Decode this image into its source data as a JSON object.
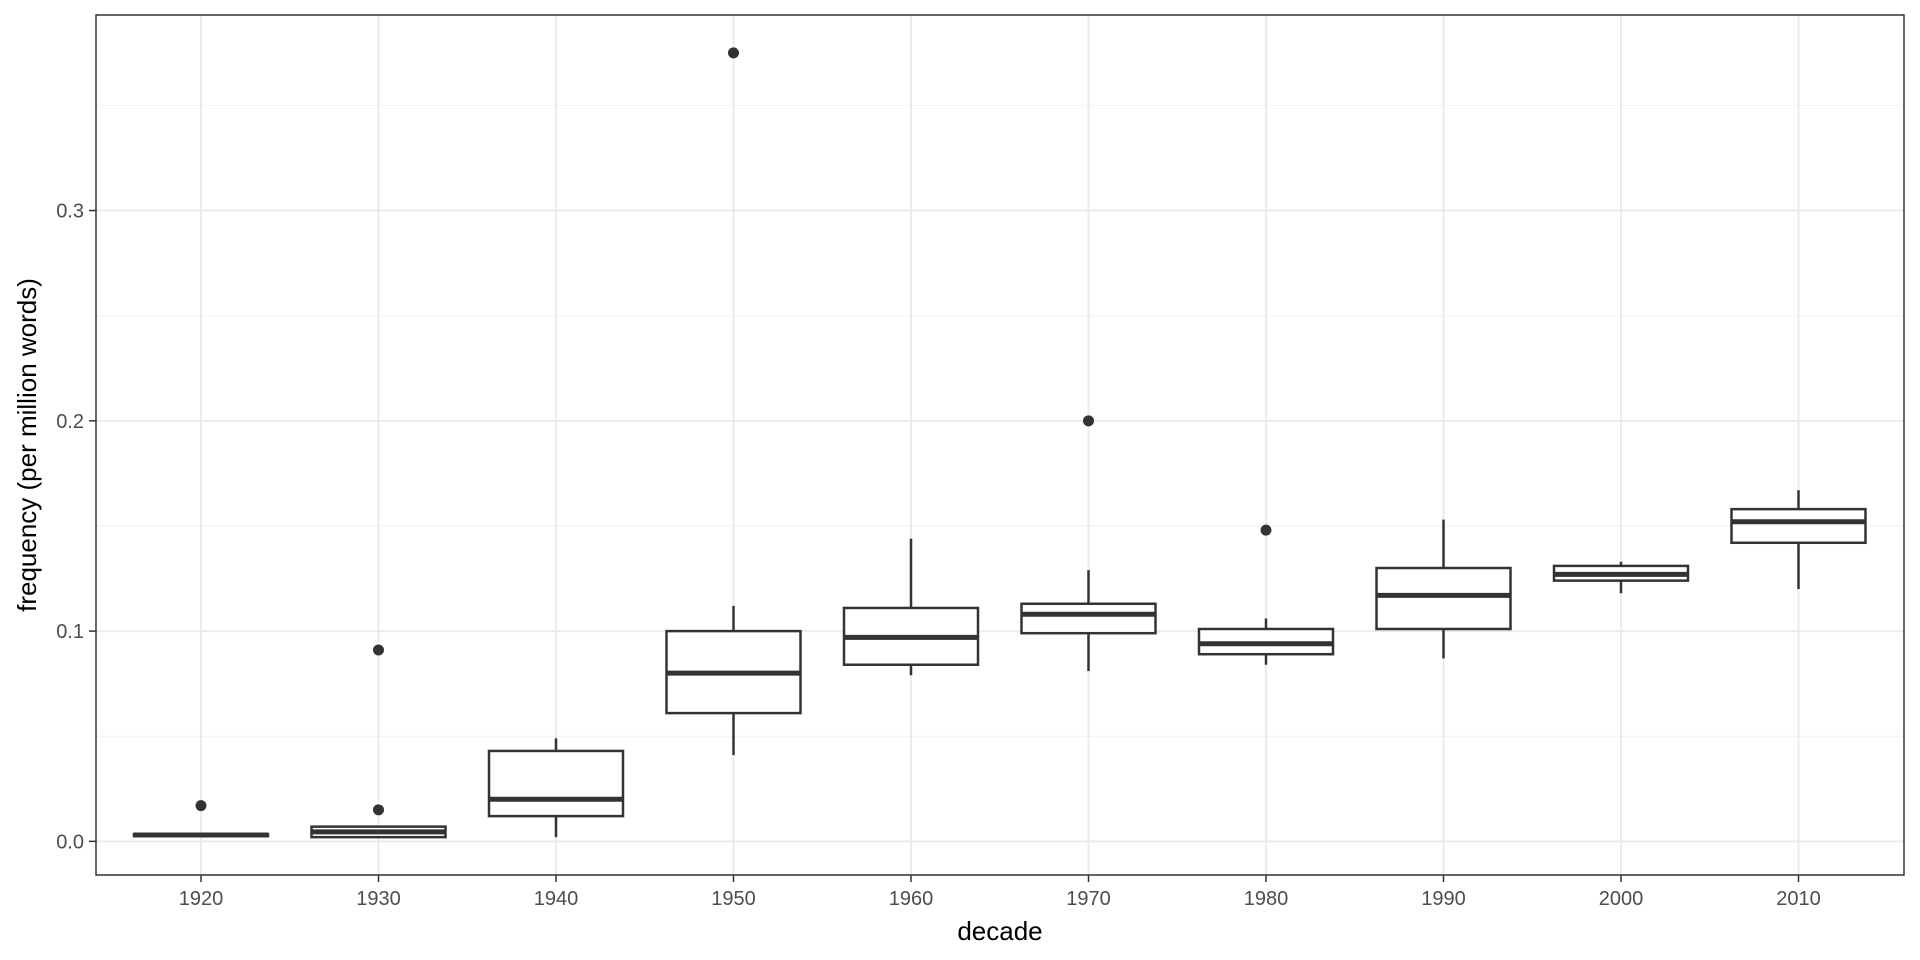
{
  "chart_data": {
    "type": "boxplot",
    "xlabel": "decade",
    "ylabel": "frequency (per million words)",
    "ylim": [
      -0.016,
      0.393
    ],
    "y_ticks": [
      0.0,
      0.1,
      0.2,
      0.3
    ],
    "y_tick_labels": [
      "0.0",
      "0.1",
      "0.2",
      "0.3"
    ],
    "y_minor_ticks": [
      0.05,
      0.15,
      0.25,
      0.35
    ],
    "grid": true,
    "categories": [
      "1920",
      "1930",
      "1940",
      "1950",
      "1960",
      "1970",
      "1980",
      "1990",
      "2000",
      "2010"
    ],
    "boxes": [
      {
        "category": "1920",
        "whisker_low": 0.002,
        "q1": 0.0025,
        "median": 0.003,
        "q3": 0.0035,
        "whisker_high": 0.004,
        "outliers": [
          0.017
        ]
      },
      {
        "category": "1930",
        "whisker_low": 0.0015,
        "q1": 0.002,
        "median": 0.0045,
        "q3": 0.007,
        "whisker_high": 0.007,
        "outliers": [
          0.091,
          0.015
        ]
      },
      {
        "category": "1940",
        "whisker_low": 0.002,
        "q1": 0.012,
        "median": 0.02,
        "q3": 0.043,
        "whisker_high": 0.049,
        "outliers": []
      },
      {
        "category": "1950",
        "whisker_low": 0.041,
        "q1": 0.061,
        "median": 0.08,
        "q3": 0.1,
        "whisker_high": 0.112,
        "outliers": [
          0.375
        ]
      },
      {
        "category": "1960",
        "whisker_low": 0.079,
        "q1": 0.084,
        "median": 0.097,
        "q3": 0.111,
        "whisker_high": 0.144,
        "outliers": []
      },
      {
        "category": "1970",
        "whisker_low": 0.081,
        "q1": 0.099,
        "median": 0.108,
        "q3": 0.113,
        "whisker_high": 0.129,
        "outliers": [
          0.2
        ]
      },
      {
        "category": "1980",
        "whisker_low": 0.084,
        "q1": 0.089,
        "median": 0.094,
        "q3": 0.101,
        "whisker_high": 0.106,
        "outliers": [
          0.148
        ]
      },
      {
        "category": "1990",
        "whisker_low": 0.087,
        "q1": 0.101,
        "median": 0.117,
        "q3": 0.13,
        "whisker_high": 0.153,
        "outliers": []
      },
      {
        "category": "2000",
        "whisker_low": 0.118,
        "q1": 0.124,
        "median": 0.127,
        "q3": 0.131,
        "whisker_high": 0.133,
        "outliers": []
      },
      {
        "category": "2010",
        "whisker_low": 0.12,
        "q1": 0.142,
        "median": 0.152,
        "q3": 0.158,
        "whisker_high": 0.167,
        "outliers": []
      }
    ]
  }
}
